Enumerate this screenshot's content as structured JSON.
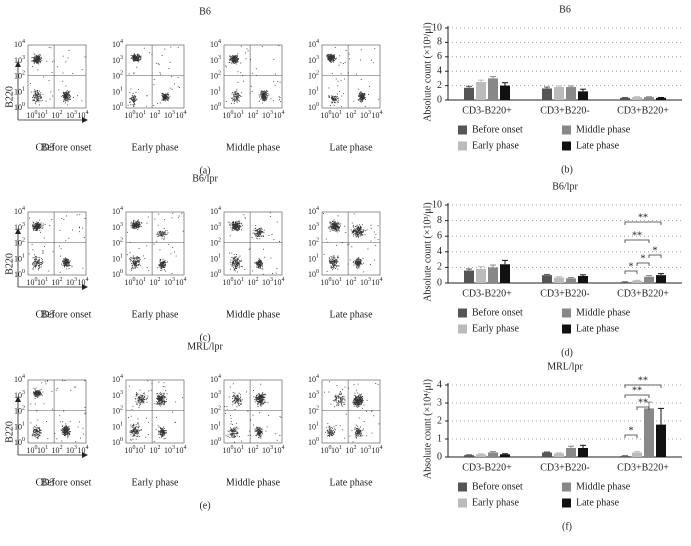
{
  "flow": {
    "tick_base": "10",
    "tick_exponents": [
      "0",
      "1",
      "2",
      "3",
      "4"
    ],
    "y_label": "B220",
    "x_label": "CD3",
    "panels": [
      {
        "title": "B6",
        "letter": "(a)",
        "phases": [
          "Before onset",
          "Early phase",
          "Middle phase",
          "Late phase"
        ]
      },
      {
        "title": "B6/lpr",
        "letter": "(c)",
        "phases": [
          "Before onset",
          "Early phase",
          "Middle phase",
          "Late phase"
        ]
      },
      {
        "title": "MRL/lpr",
        "letter": "(e)",
        "phases": [
          "Before onset",
          "Early phase",
          "Middle phase",
          "Late phase"
        ]
      }
    ]
  },
  "chart_data": [
    {
      "type": "bar",
      "title": "B6",
      "ylabel": "Absolute count (×10³/μl)",
      "letter": "(b)",
      "categories": [
        "CD3-B220+",
        "CD3+B220-",
        "CD3+B220+"
      ],
      "series": [
        {
          "name": "Before onset",
          "color": "#555555",
          "values": [
            1.7,
            1.6,
            0.3
          ],
          "errors": [
            0.2,
            0.2,
            0.05
          ]
        },
        {
          "name": "Early phase",
          "color": "#bbbbbb",
          "values": [
            2.5,
            1.8,
            0.4
          ],
          "errors": [
            0.25,
            0.15,
            0.05
          ]
        },
        {
          "name": "Middle phase",
          "color": "#888888",
          "values": [
            3.0,
            1.8,
            0.4
          ],
          "errors": [
            0.25,
            0.15,
            0.05
          ]
        },
        {
          "name": "Late phase",
          "color": "#111111",
          "values": [
            2.0,
            1.2,
            0.3
          ],
          "errors": [
            0.4,
            0.3,
            0.05
          ]
        }
      ],
      "ylim": [
        0,
        10
      ],
      "yticks": [
        0,
        2,
        4,
        6,
        8,
        10
      ],
      "grid": true,
      "annotations": []
    },
    {
      "type": "bar",
      "title": "B6/lpr",
      "ylabel": "Absolute count (×10³/μl)",
      "letter": "(d)",
      "categories": [
        "CD3-B220+",
        "CD3+B220-",
        "CD3+B220+"
      ],
      "series": [
        {
          "name": "Before onset",
          "color": "#555555",
          "values": [
            1.6,
            1.0,
            0.1
          ],
          "errors": [
            0.2,
            0.1,
            0.05
          ]
        },
        {
          "name": "Early phase",
          "color": "#bbbbbb",
          "values": [
            1.8,
            0.7,
            0.3
          ],
          "errors": [
            0.3,
            0.1,
            0.05
          ]
        },
        {
          "name": "Middle phase",
          "color": "#888888",
          "values": [
            2.0,
            0.6,
            0.8
          ],
          "errors": [
            0.3,
            0.1,
            0.15
          ]
        },
        {
          "name": "Late phase",
          "color": "#111111",
          "values": [
            2.4,
            0.9,
            1.0
          ],
          "errors": [
            0.5,
            0.15,
            0.2
          ]
        }
      ],
      "ylim": [
        0,
        10
      ],
      "yticks": [
        0,
        2,
        4,
        6,
        8,
        10
      ],
      "grid": true,
      "annotations": [
        "**",
        "**",
        "*",
        "*",
        "*"
      ]
    },
    {
      "type": "bar",
      "title": "MRL/lpr",
      "ylabel": "Absolute count (×10⁴/μl)",
      "letter": "(f)",
      "categories": [
        "CD3-B220+",
        "CD3+B220-",
        "CD3+B220+"
      ],
      "series": [
        {
          "name": "Before onset",
          "color": "#555555",
          "values": [
            0.1,
            0.25,
            0.05
          ],
          "errors": [
            0.02,
            0.03,
            0.02
          ]
        },
        {
          "name": "Early phase",
          "color": "#bbbbbb",
          "values": [
            0.15,
            0.2,
            0.25
          ],
          "errors": [
            0.03,
            0.03,
            0.05
          ]
        },
        {
          "name": "Middle phase",
          "color": "#888888",
          "values": [
            0.25,
            0.5,
            2.7
          ],
          "errors": [
            0.05,
            0.1,
            0.35
          ]
        },
        {
          "name": "Late phase",
          "color": "#111111",
          "values": [
            0.15,
            0.5,
            1.8
          ],
          "errors": [
            0.03,
            0.15,
            0.9
          ]
        }
      ],
      "ylim": [
        0,
        4
      ],
      "yticks": [
        0,
        1,
        2,
        3,
        4
      ],
      "grid": true,
      "annotations": [
        "**",
        "**",
        "**",
        "*"
      ]
    }
  ]
}
